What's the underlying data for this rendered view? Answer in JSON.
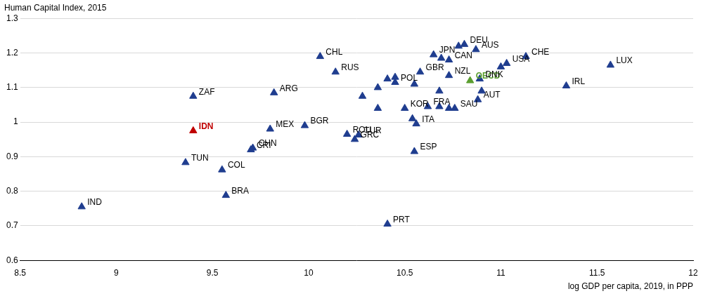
{
  "chart_data": {
    "type": "scatter",
    "y_label": "Human Capital Index, 2015",
    "x_label": "log GDP per capita, 2019, in PPP",
    "xlim": [
      8.5,
      12
    ],
    "xticks": [
      8.5,
      9,
      9.5,
      10,
      10.5,
      11,
      11.5,
      12
    ],
    "ylim": [
      0.6,
      1.3
    ],
    "yticks": [
      0.6,
      0.7,
      0.8,
      0.9,
      1,
      1.1,
      1.2,
      1.3
    ],
    "grid": "y",
    "marker": "triangle",
    "color": "#1f3d8f",
    "points": [
      {
        "name": "IND",
        "x": 8.82,
        "y": 0.755,
        "color": "#1f3d8f"
      },
      {
        "name": "TUN",
        "x": 9.36,
        "y": 0.883,
        "color": "#1f3d8f"
      },
      {
        "name": "ZAF",
        "x": 9.4,
        "y": 1.075,
        "color": "#1f3d8f"
      },
      {
        "name": "IDN",
        "x": 9.4,
        "y": 0.975,
        "color": "#c00000"
      },
      {
        "name": "COL",
        "x": 9.55,
        "y": 0.862,
        "color": "#1f3d8f"
      },
      {
        "name": "BRA",
        "x": 9.57,
        "y": 0.788,
        "color": "#1f3d8f"
      },
      {
        "name": "CRI",
        "x": 9.7,
        "y": 0.92,
        "color": "#1f3d8f"
      },
      {
        "name": "CHN",
        "x": 9.71,
        "y": 0.925,
        "color": "#1f3d8f"
      },
      {
        "name": "MEX",
        "x": 9.8,
        "y": 0.98,
        "color": "#1f3d8f"
      },
      {
        "name": "ARG",
        "x": 9.82,
        "y": 1.085,
        "color": "#1f3d8f"
      },
      {
        "name": "BGR",
        "x": 9.98,
        "y": 0.99,
        "color": "#1f3d8f"
      },
      {
        "name": "CHL",
        "x": 10.06,
        "y": 1.19,
        "color": "#1f3d8f"
      },
      {
        "name": "RUS",
        "x": 10.14,
        "y": 1.145,
        "color": "#1f3d8f"
      },
      {
        "name": "ROU",
        "x": 10.2,
        "y": 0.965,
        "color": "#1f3d8f"
      },
      {
        "name": "GRC",
        "x": 10.24,
        "y": 0.95,
        "color": "#1f3d8f"
      },
      {
        "name": "TUR",
        "x": 10.26,
        "y": 0.963,
        "color": "#1f3d8f"
      },
      {
        "name": null,
        "x": 10.28,
        "y": 1.075,
        "color": "#1f3d8f"
      },
      {
        "name": null,
        "x": 10.36,
        "y": 1.1,
        "color": "#1f3d8f"
      },
      {
        "name": null,
        "x": 10.36,
        "y": 1.04,
        "color": "#1f3d8f"
      },
      {
        "name": null,
        "x": 10.41,
        "y": 1.125,
        "color": "#1f3d8f"
      },
      {
        "name": null,
        "x": 10.45,
        "y": 1.13,
        "color": "#1f3d8f"
      },
      {
        "name": "POL",
        "x": 10.45,
        "y": 1.115,
        "color": "#1f3d8f"
      },
      {
        "name": "KOR",
        "x": 10.5,
        "y": 1.04,
        "color": "#1f3d8f"
      },
      {
        "name": null,
        "x": 10.54,
        "y": 1.01,
        "color": "#1f3d8f"
      },
      {
        "name": "ITA",
        "x": 10.56,
        "y": 0.995,
        "color": "#1f3d8f"
      },
      {
        "name": "ESP",
        "x": 10.55,
        "y": 0.915,
        "color": "#1f3d8f"
      },
      {
        "name": "PRT",
        "x": 10.41,
        "y": 0.705,
        "color": "#1f3d8f"
      },
      {
        "name": null,
        "x": 10.55,
        "y": 1.11,
        "color": "#1f3d8f"
      },
      {
        "name": "GBR",
        "x": 10.58,
        "y": 1.145,
        "color": "#1f3d8f"
      },
      {
        "name": "FRA",
        "x": 10.62,
        "y": 1.045,
        "color": "#1f3d8f"
      },
      {
        "name": "JPN",
        "x": 10.65,
        "y": 1.195,
        "color": "#1f3d8f"
      },
      {
        "name": null,
        "x": 10.68,
        "y": 1.09,
        "color": "#1f3d8f"
      },
      {
        "name": null,
        "x": 10.68,
        "y": 1.045,
        "color": "#1f3d8f"
      },
      {
        "name": null,
        "x": 10.69,
        "y": 1.185,
        "color": "#1f3d8f"
      },
      {
        "name": "CAN",
        "x": 10.73,
        "y": 1.18,
        "color": "#1f3d8f"
      },
      {
        "name": "NZL",
        "x": 10.73,
        "y": 1.135,
        "color": "#1f3d8f"
      },
      {
        "name": null,
        "x": 10.73,
        "y": 1.04,
        "color": "#1f3d8f"
      },
      {
        "name": "SAU",
        "x": 10.76,
        "y": 1.04,
        "color": "#1f3d8f"
      },
      {
        "name": null,
        "x": 10.78,
        "y": 1.22,
        "color": "#1f3d8f"
      },
      {
        "name": "DEU",
        "x": 10.81,
        "y": 1.225,
        "color": "#1f3d8f"
      },
      {
        "name": "AUS",
        "x": 10.87,
        "y": 1.21,
        "color": "#1f3d8f"
      },
      {
        "name": "OECD",
        "x": 10.84,
        "y": 1.12,
        "color": "#5a9e2f"
      },
      {
        "name": "DNK",
        "x": 10.89,
        "y": 1.125,
        "color": "#1f3d8f"
      },
      {
        "name": null,
        "x": 10.9,
        "y": 1.09,
        "color": "#1f3d8f"
      },
      {
        "name": "AUT",
        "x": 10.88,
        "y": 1.065,
        "color": "#1f3d8f"
      },
      {
        "name": null,
        "x": 11.0,
        "y": 1.16,
        "color": "#1f3d8f"
      },
      {
        "name": "USA",
        "x": 11.03,
        "y": 1.17,
        "color": "#1f3d8f"
      },
      {
        "name": "CHE",
        "x": 11.13,
        "y": 1.19,
        "color": "#1f3d8f"
      },
      {
        "name": "IRL",
        "x": 11.34,
        "y": 1.105,
        "color": "#1f3d8f"
      },
      {
        "name": "LUX",
        "x": 11.57,
        "y": 1.165,
        "color": "#1f3d8f"
      }
    ]
  }
}
